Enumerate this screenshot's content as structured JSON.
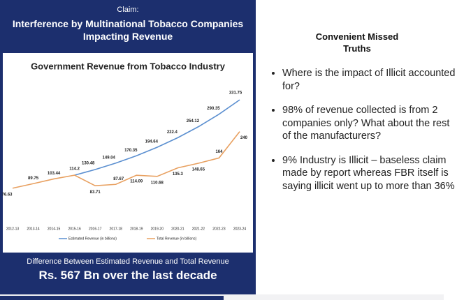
{
  "claim_label": "Claim:",
  "claim_title": "Interference by Multinational Tobacco Companies Impacting Revenue",
  "footer": {
    "caption": "Difference Between Estimated Revenue and Total Revenue",
    "amount": "Rs. 567 Bn over the last decade"
  },
  "side": {
    "title": "Convenient Missed Truths",
    "bullets": [
      "Where is the impact of Illicit accounted for?",
      "98% of revenue collected is from 2 companies only? What about the rest of the manufacturers?",
      "9% Industry is Illicit – baseless claim made by report whereas FBR itself is saying illicit went up to more than 36%"
    ]
  },
  "chart_data": {
    "type": "line",
    "title": "Government Revenue from Tobacco Industry",
    "categories": [
      "2012-13",
      "2013-14",
      "2014-15",
      "2015-16",
      "2016-17",
      "2017-18",
      "2018-19",
      "2019-20",
      "2020-21",
      "2021-22",
      "2022-23",
      "2023-24"
    ],
    "series": [
      {
        "name": "Estimated Revenue (in billions)",
        "color": "#5b8fd0",
        "values": [
          null,
          null,
          null,
          114.2,
          130.48,
          149.04,
          170.35,
          194.64,
          222.4,
          254.12,
          290.35,
          331.75
        ]
      },
      {
        "name": "Total Revenue (in billions)",
        "color": "#e8a060",
        "values": [
          76.63,
          89.75,
          103.44,
          114.2,
          83.71,
          87.67,
          114.09,
          110.68,
          135.3,
          148.65,
          164,
          240
        ]
      }
    ],
    "ylim": [
      60,
      340
    ],
    "legend": "bottom"
  }
}
